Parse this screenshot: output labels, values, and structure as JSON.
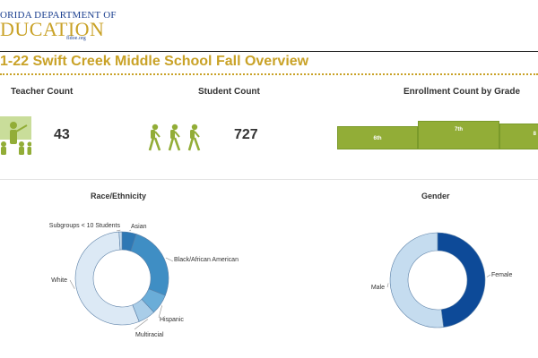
{
  "header": {
    "logo_line1": "ORIDA DEPARTMENT OF",
    "logo_line2": "DUCATION",
    "logo_url": "fldoe.org",
    "title": "1-22 Swift Creek Middle School Fall Overview"
  },
  "kpis": {
    "teacher": {
      "label": "Teacher Count",
      "value": "43",
      "icon": "teacher-icon"
    },
    "student": {
      "label": "Student Count",
      "value": "727",
      "icon": "students-walking-icon"
    },
    "enrollment": {
      "label": "Enrollment Count by Grade",
      "grades": [
        {
          "label": "6th"
        },
        {
          "label": "7th"
        },
        {
          "label": "8"
        }
      ]
    }
  },
  "race_chart": {
    "title": "Race/Ethnicity",
    "slices": [
      {
        "label": "Asian",
        "value": 5,
        "color": "#2e78b4"
      },
      {
        "label": "Black/African American",
        "value": 26,
        "color": "#3f8ec4"
      },
      {
        "label": "Hispanic",
        "value": 7,
        "color": "#6aadd8"
      },
      {
        "label": "Multiracial",
        "value": 6,
        "color": "#a9cde8"
      },
      {
        "label": "White",
        "value": 55,
        "color": "#dce9f5"
      },
      {
        "label": "Subgroups < 10 Students",
        "value": 1,
        "color": "#c5dcef"
      }
    ]
  },
  "gender_chart": {
    "title": "Gender",
    "slices": [
      {
        "label": "Female",
        "value": 48,
        "color": "#0d4a98"
      },
      {
        "label": "Male",
        "value": 52,
        "color": "#c5dcef"
      }
    ]
  },
  "colors": {
    "accent_gold": "#c9a227",
    "bar_green": "#92ad37",
    "brand_blue": "#1b3f8f"
  }
}
